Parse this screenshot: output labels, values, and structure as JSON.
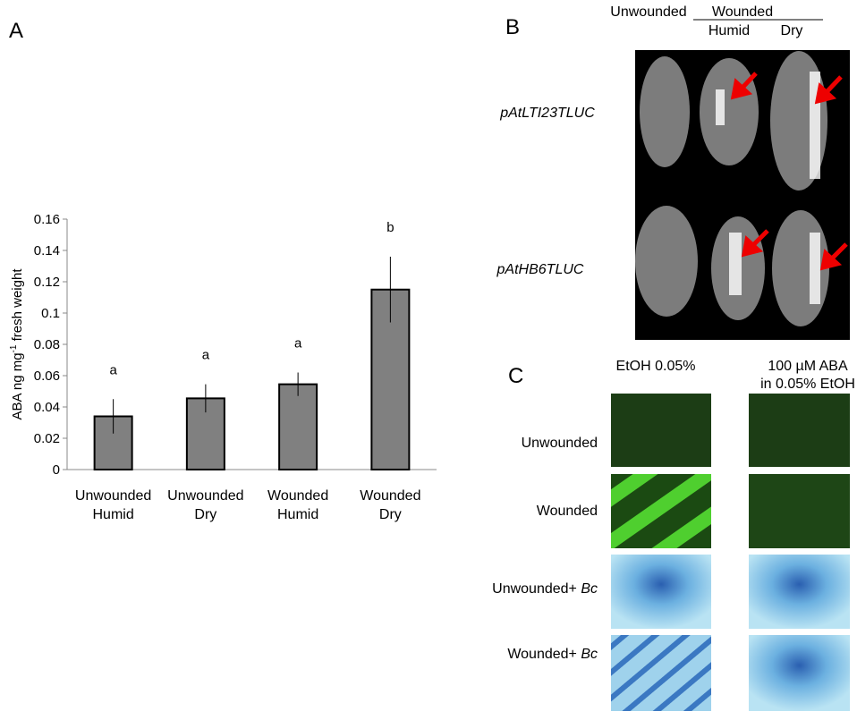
{
  "chart_data": {
    "type": "bar",
    "y_label": [
      "ABA ng mg",
      "-1",
      " fresh weight"
    ],
    "categories": [
      [
        "Unwounded",
        "Humid"
      ],
      [
        "Unwounded",
        "Dry"
      ],
      [
        "Wounded",
        "Humid"
      ],
      [
        "Wounded",
        "Dry"
      ]
    ],
    "values": [
      0.034,
      0.0455,
      0.0545,
      0.115
    ],
    "errors": [
      0.011,
      0.009,
      0.0075,
      0.021
    ],
    "annotations": [
      "a",
      "a",
      "a",
      "b"
    ],
    "color": "#808080",
    "ylim": [
      0,
      0.16
    ],
    "yticks": [
      0,
      0.02,
      0.04,
      0.06,
      0.08,
      0.1,
      0.12,
      0.14,
      0.16
    ],
    "grid": false
  },
  "figure": {
    "panel_labels": [
      "A",
      "B",
      "C"
    ],
    "panel_b": {
      "unwounded": "Unwounded",
      "wounded": "Wounded",
      "humid": "Humid",
      "dry": "Dry",
      "rows": [
        "pAtLTI23TLUC",
        "pAtHB6TLUC"
      ]
    },
    "panel_c": {
      "col1": "EtOH 0.05%",
      "col2": [
        "100 µM ABA",
        "in 0.05% EtOH"
      ],
      "rows": [
        [
          "Unwounded",
          ""
        ],
        [
          "Wounded",
          ""
        ],
        [
          "Unwounded+ ",
          "Bc"
        ],
        [
          "Wounded+ ",
          "Bc"
        ]
      ]
    }
  }
}
